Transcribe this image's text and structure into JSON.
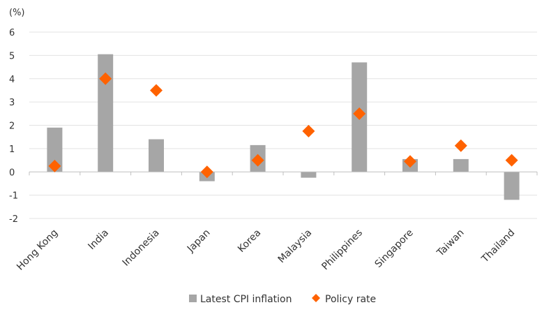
{
  "chart_data": {
    "type": "bar",
    "ylabel": "(%)",
    "ylim": [
      -2,
      6
    ],
    "yticks": [
      6,
      5,
      4,
      3,
      2,
      1,
      0,
      -1,
      -2
    ],
    "grid": true,
    "legend_position": "bottom",
    "categories": [
      "Hong Kong",
      "India",
      "Indonesia",
      "Japan",
      "Korea",
      "Malaysia",
      "Philippines",
      "Singapore",
      "Taiwan",
      "Thailand"
    ],
    "series": [
      {
        "name": "Latest CPI inflation",
        "type": "bar",
        "color": "#a6a6a6",
        "values": [
          1.9,
          5.05,
          1.4,
          -0.4,
          1.15,
          -0.25,
          4.7,
          0.55,
          0.55,
          -1.2
        ]
      },
      {
        "name": "Policy rate",
        "type": "scatter",
        "marker": "diamond",
        "color": "#ff6200",
        "values": [
          0.25,
          4.0,
          3.5,
          0.0,
          0.5,
          1.75,
          2.5,
          0.45,
          1.125,
          0.5
        ]
      }
    ]
  }
}
